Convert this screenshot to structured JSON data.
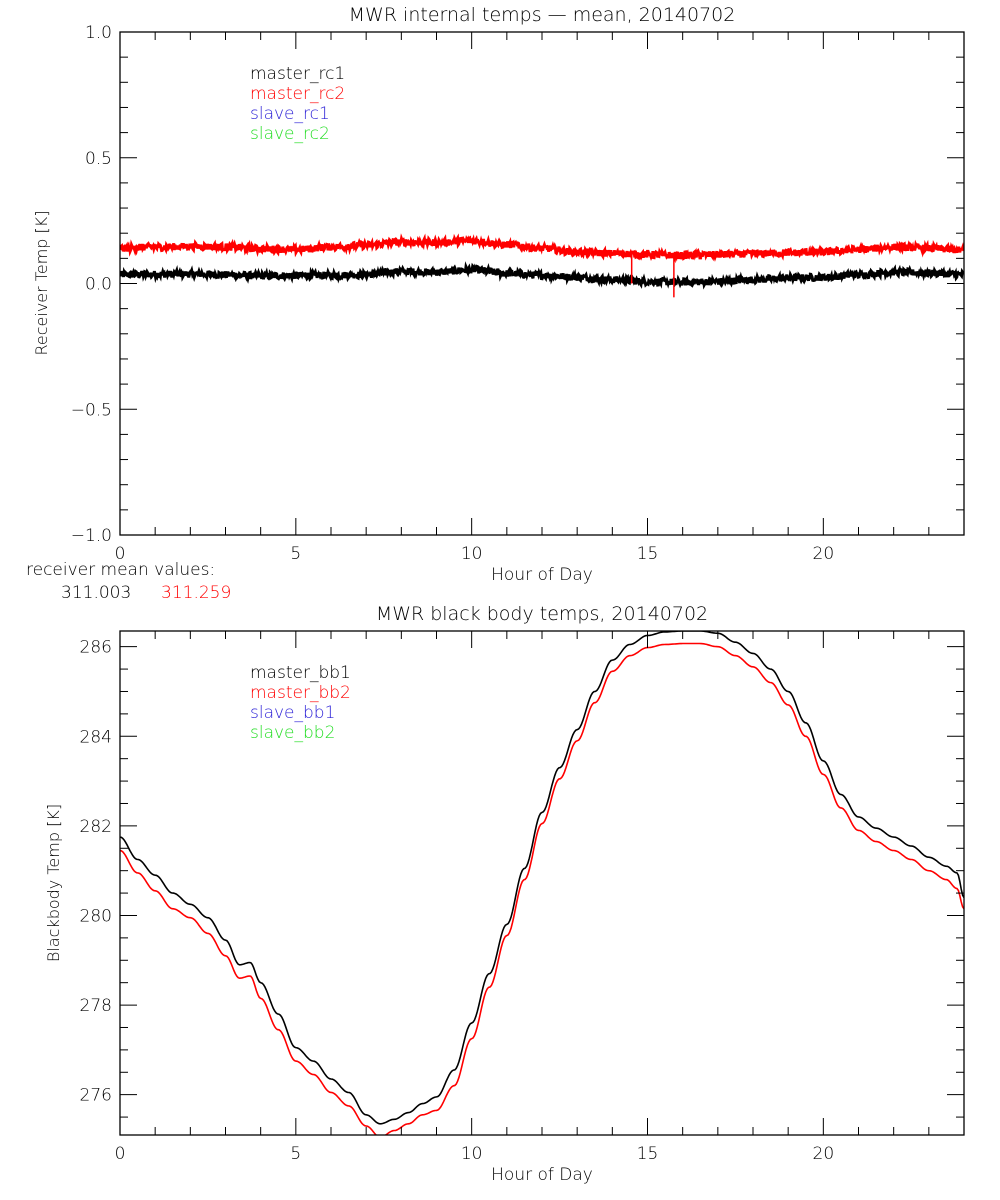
{
  "chart_data": [
    {
      "type": "line",
      "title": "MWR internal temps — mean, 20140702",
      "xlabel": "Hour of Day",
      "ylabel": "Receiver Temp [K]",
      "xlim": [
        0,
        24
      ],
      "ylim": [
        -1.0,
        1.0
      ],
      "xticks": [
        0,
        5,
        10,
        15,
        20
      ],
      "xtick_labels": [
        "0",
        "5",
        "10",
        "15",
        "20"
      ],
      "x_minor_step": 1,
      "yticks": [
        -1.0,
        -0.5,
        0.0,
        0.5,
        1.0
      ],
      "ytick_labels": [
        "−1.0",
        "−0.5",
        "0.0",
        "0.5",
        "1.0"
      ],
      "y_minor_step": 0.1,
      "grid": false,
      "legend_position": "top-left",
      "legend": [
        {
          "label": "master_rc1",
          "color": "#000000"
        },
        {
          "label": "master_rc2",
          "color": "#ff0000"
        },
        {
          "label": "slave_rc1",
          "color": "#2a1fd6"
        },
        {
          "label": "slave_rc2",
          "color": "#22dd22"
        }
      ],
      "noisy": true,
      "series": [
        {
          "name": "master_rc1",
          "color": "#000000",
          "x": [
            0,
            1,
            2,
            3,
            4,
            5,
            6,
            7,
            8,
            9,
            10,
            11,
            12,
            13,
            14,
            15,
            16,
            17,
            18,
            19,
            20,
            21,
            22,
            23,
            24
          ],
          "y": [
            0.035,
            0.037,
            0.038,
            0.035,
            0.03,
            0.032,
            0.033,
            0.035,
            0.048,
            0.045,
            0.055,
            0.04,
            0.033,
            0.025,
            0.015,
            0.008,
            0.005,
            0.008,
            0.015,
            0.022,
            0.025,
            0.035,
            0.045,
            0.042,
            0.035
          ]
        },
        {
          "name": "master_rc2",
          "color": "#ff0000",
          "x": [
            0,
            1,
            2,
            3,
            4,
            5,
            6,
            7,
            8,
            9,
            10,
            11,
            12,
            13,
            14,
            15,
            16,
            17,
            18,
            19,
            20,
            21,
            22,
            23,
            24
          ],
          "y": [
            0.14,
            0.145,
            0.148,
            0.145,
            0.138,
            0.135,
            0.145,
            0.152,
            0.165,
            0.163,
            0.17,
            0.155,
            0.14,
            0.125,
            0.12,
            0.115,
            0.112,
            0.115,
            0.118,
            0.122,
            0.125,
            0.135,
            0.145,
            0.14,
            0.132
          ]
        }
      ],
      "spikes": [
        {
          "series": "master_rc2",
          "x": 14.55,
          "y": 0.0
        },
        {
          "series": "master_rc2",
          "x": 15.75,
          "y": -0.055
        }
      ],
      "annotation": {
        "label": "receiver mean values:",
        "values": [
          {
            "text": "311.003",
            "color": "#000000"
          },
          {
            "text": "311.259",
            "color": "#ff0000"
          }
        ]
      }
    },
    {
      "type": "line",
      "title": "MWR black body temps, 20140702",
      "xlabel": "Hour of Day",
      "ylabel": "Blackbody Temp [K]",
      "xlim": [
        0,
        24
      ],
      "ylim": [
        275.1,
        286.35
      ],
      "xticks": [
        0,
        5,
        10,
        15,
        20
      ],
      "xtick_labels": [
        "0",
        "5",
        "10",
        "15",
        "20"
      ],
      "x_minor_step": 1,
      "yticks": [
        276,
        278,
        280,
        282,
        284,
        286
      ],
      "ytick_labels": [
        "276",
        "278",
        "280",
        "282",
        "284",
        "286"
      ],
      "y_minor_step": 0.5,
      "grid": false,
      "legend_position": "top-left",
      "legend": [
        {
          "label": "master_bb1",
          "color": "#000000"
        },
        {
          "label": "master_bb2",
          "color": "#ff0000"
        },
        {
          "label": "slave_bb1",
          "color": "#2a1fd6"
        },
        {
          "label": "slave_bb2",
          "color": "#22dd22"
        }
      ],
      "noisy": false,
      "series": [
        {
          "name": "master_bb1",
          "color": "#000000",
          "x": [
            0,
            0.5,
            1,
            1.5,
            2,
            2.5,
            3,
            3.4,
            3.7,
            4,
            4.5,
            5,
            5.5,
            6,
            6.5,
            7,
            7.4,
            7.8,
            8.2,
            8.6,
            9,
            9.5,
            10,
            10.5,
            11,
            11.5,
            12,
            12.5,
            13,
            13.5,
            14,
            14.5,
            15,
            15.5,
            16,
            16.5,
            17,
            17.5,
            18,
            18.5,
            19,
            19.5,
            20,
            20.5,
            21,
            21.5,
            22,
            22.5,
            23,
            23.5,
            23.8,
            24
          ],
          "y": [
            281.75,
            281.25,
            280.9,
            280.5,
            280.25,
            279.95,
            279.45,
            278.9,
            278.95,
            278.5,
            277.8,
            277.05,
            276.75,
            276.35,
            276.05,
            275.55,
            275.35,
            275.45,
            275.6,
            275.8,
            275.95,
            276.55,
            277.6,
            278.7,
            279.8,
            281.05,
            282.3,
            283.3,
            284.15,
            285.0,
            285.7,
            286.05,
            286.25,
            286.33,
            286.35,
            286.35,
            286.3,
            286.1,
            285.85,
            285.5,
            285.0,
            284.3,
            283.45,
            282.7,
            282.2,
            281.95,
            281.75,
            281.55,
            281.3,
            281.1,
            280.95,
            280.4
          ]
        },
        {
          "name": "master_bb2",
          "color": "#ff0000",
          "x": [
            0,
            0.5,
            1,
            1.5,
            2,
            2.5,
            3,
            3.4,
            3.7,
            4,
            4.5,
            5,
            5.5,
            6,
            6.5,
            7,
            7.4,
            7.8,
            8.2,
            8.6,
            9,
            9.5,
            10,
            10.5,
            11,
            11.5,
            12,
            12.5,
            13,
            13.5,
            14,
            14.5,
            15,
            15.5,
            16,
            16.5,
            17,
            17.5,
            18,
            18.5,
            19,
            19.5,
            20,
            20.5,
            21,
            21.5,
            22,
            22.5,
            23,
            23.5,
            23.8,
            24
          ],
          "y": [
            281.45,
            280.95,
            280.55,
            280.15,
            279.95,
            279.6,
            279.1,
            278.6,
            278.65,
            278.15,
            277.45,
            276.75,
            276.45,
            276.05,
            275.75,
            275.3,
            275.05,
            275.2,
            275.35,
            275.55,
            275.65,
            276.2,
            277.25,
            278.4,
            279.55,
            280.8,
            282.05,
            283.05,
            283.9,
            284.75,
            285.45,
            285.8,
            285.98,
            286.05,
            286.07,
            286.07,
            286.0,
            285.8,
            285.55,
            285.2,
            284.7,
            284.0,
            283.15,
            282.4,
            281.9,
            281.65,
            281.45,
            281.25,
            281.0,
            280.8,
            280.6,
            280.15
          ]
        }
      ]
    }
  ]
}
